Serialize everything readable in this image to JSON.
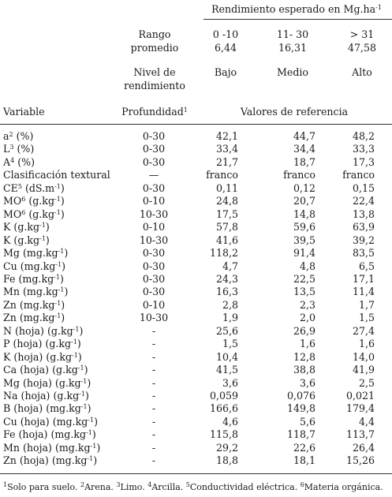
{
  "header": {
    "group_title": "Rendimiento esperado en Mg.ha",
    "group_title_sup": "-1",
    "rango_label_1": "Rango",
    "rango_label_2": "promedio",
    "rango": [
      "0 -10",
      "11- 30",
      "> 31"
    ],
    "promedio": [
      "6,44",
      "16,31",
      "47,58"
    ],
    "nivel_label_1": "Nivel de",
    "nivel_label_2": "rendimiento",
    "niveles": [
      "Bajo",
      "Medio",
      "Alto"
    ],
    "variable_label": "Variable",
    "profundidad_label": "Profundidad",
    "profundidad_sup": "1",
    "valores_label": "Valores de referencia"
  },
  "rows": [
    {
      "var": "a",
      "sup": "2",
      "unit": " (%)",
      "prof": "0-30",
      "v": [
        "42,1",
        "44,7",
        "48,2"
      ]
    },
    {
      "var": "L",
      "sup": "3",
      "unit": " (%)",
      "prof": "0-30",
      "v": [
        "33,4",
        "34,4",
        "33,3"
      ]
    },
    {
      "var": "A",
      "sup": "4",
      "unit": " (%)",
      "prof": "0-30",
      "v": [
        "21,7",
        "18,7",
        "17,3"
      ]
    },
    {
      "var": "Clasificación textural",
      "sup": "",
      "unit": "",
      "prof": "—",
      "v": [
        "franco",
        "franco",
        "franco"
      ]
    },
    {
      "var": "CE",
      "sup": "5",
      "unit": " (dS.m",
      "unit_sup": "-1",
      "unit_end": ")",
      "prof": "0-30",
      "v": [
        "0,11",
        "0,12",
        "0,15"
      ]
    },
    {
      "var": "MO",
      "sup": "6",
      "unit": " (g.kg",
      "unit_sup": "-1",
      "unit_end": ")",
      "prof": "0-10",
      "v": [
        "24,8",
        "20,7",
        "22,4"
      ]
    },
    {
      "var": "MO",
      "sup": "6",
      "unit": " (g.kg",
      "unit_sup": "-1",
      "unit_end": ")",
      "prof": "10-30",
      "v": [
        "17,5",
        "14,8",
        "13,8"
      ]
    },
    {
      "var": "K",
      "sup": "",
      "unit": " (g.kg",
      "unit_sup": "-1",
      "unit_end": ")",
      "prof": "0-10",
      "v": [
        "57,8",
        "59,6",
        "63,9"
      ]
    },
    {
      "var": "K",
      "sup": "",
      "unit": " (g.kg",
      "unit_sup": "-1",
      "unit_end": ")",
      "prof": "10-30",
      "v": [
        "41,6",
        "39,5",
        "39,2"
      ]
    },
    {
      "var": "Mg",
      "sup": "",
      "unit": " (mg.kg",
      "unit_sup": "-1",
      "unit_end": ")",
      "prof": "0-30",
      "v": [
        "118,2",
        "91,4",
        "83,5"
      ]
    },
    {
      "var": "Cu",
      "sup": "",
      "unit": " (mg.kg",
      "unit_sup": "-1",
      "unit_end": ")",
      "prof": "0-30",
      "v": [
        "4,7",
        "4,8",
        "6,5"
      ]
    },
    {
      "var": "Fe",
      "sup": "",
      "unit": " (mg.kg",
      "unit_sup": "-1",
      "unit_end": ")",
      "prof": "0-30",
      "v": [
        "24,3",
        "22,5",
        "17,1"
      ]
    },
    {
      "var": "Mn",
      "sup": "",
      "unit": " (mg.kg",
      "unit_sup": "-1",
      "unit_end": ")",
      "prof": "0-30",
      "v": [
        "16,3",
        "13,5",
        "11,4"
      ]
    },
    {
      "var": "Zn",
      "sup": "",
      "unit": " (mg.kg",
      "unit_sup": "-1",
      "unit_end": ")",
      "prof": "0-10",
      "v": [
        "2,8",
        "2,3",
        "1,7"
      ]
    },
    {
      "var": "Zn",
      "sup": "",
      "unit": " (mg.kg",
      "unit_sup": "-1",
      "unit_end": ")",
      "prof": "10-30",
      "v": [
        "1,9",
        "2,0",
        "1,5"
      ]
    },
    {
      "var": "N (hoja)",
      "sup": "",
      "unit": " (g.kg",
      "unit_sup": "-1",
      "unit_end": ")",
      "prof": "-",
      "v": [
        "25,6",
        "26,9",
        "27,4"
      ]
    },
    {
      "var": "P (hoja)",
      "sup": "",
      "unit": " (g.kg",
      "unit_sup": "-1",
      "unit_end": ")",
      "prof": "-",
      "v": [
        "1,5",
        "1,6",
        "1,6"
      ]
    },
    {
      "var": "K (hoja)",
      "sup": "",
      "unit": " (g.kg",
      "unit_sup": "-1",
      "unit_end": ")",
      "prof": "-",
      "v": [
        "10,4",
        "12,8",
        "14,0"
      ]
    },
    {
      "var": "Ca (hoja)",
      "sup": "",
      "unit": " (g.kg",
      "unit_sup": "-1",
      "unit_end": ")",
      "prof": "-",
      "v": [
        "41,5",
        "38,8",
        "41,9"
      ]
    },
    {
      "var": "Mg (hoja)",
      "sup": "",
      "unit": " (g.kg",
      "unit_sup": "-1",
      "unit_end": ")",
      "prof": "-",
      "v": [
        "3,6",
        "3,6",
        "2,5"
      ]
    },
    {
      "var": "Na (hoja)",
      "sup": "",
      "unit": " (g.kg",
      "unit_sup": "-1",
      "unit_end": ")",
      "prof": "-",
      "v": [
        "0,059",
        "0,076",
        "0,021"
      ]
    },
    {
      "var": "B (hoja)",
      "sup": "",
      "unit": " (mg.kg",
      "unit_sup": "-1",
      "unit_end": ")",
      "prof": "-",
      "v": [
        "166,6",
        "149,8",
        "179,4"
      ]
    },
    {
      "var": "Cu (hoja)",
      "sup": "",
      "unit": " (mg.kg",
      "unit_sup": "-1",
      "unit_end": ")",
      "prof": "-",
      "v": [
        "4,6",
        "5,6",
        "4,4"
      ]
    },
    {
      "var": "Fe (hoja)",
      "sup": "",
      "unit": " (mg.kg",
      "unit_sup": "-1",
      "unit_end": ")",
      "prof": "-",
      "v": [
        "115,8",
        "118,7",
        "113,7"
      ]
    },
    {
      "var": "Mn (hoja)",
      "sup": "",
      "unit": " (mg.kg",
      "unit_sup": "-1",
      "unit_end": ")",
      "prof": "-",
      "v": [
        "29,2",
        "22,6",
        "26,4"
      ]
    },
    {
      "var": "Zn (hoja)",
      "sup": "",
      "unit": " (mg.kg",
      "unit_sup": "-1",
      "unit_end": ")",
      "prof": "-",
      "v": [
        "18,8",
        "18,1",
        "15,26"
      ]
    }
  ],
  "footnote": [
    {
      "sup": "1",
      "text": "Solo para suelo. "
    },
    {
      "sup": "2",
      "text": "Arena. "
    },
    {
      "sup": "3",
      "text": "Limo. "
    },
    {
      "sup": "4",
      "text": "Arcilla. "
    },
    {
      "sup": "5",
      "text": "Conductividad eléctrica. "
    },
    {
      "sup": "6",
      "text": "Materia orgánica."
    }
  ]
}
